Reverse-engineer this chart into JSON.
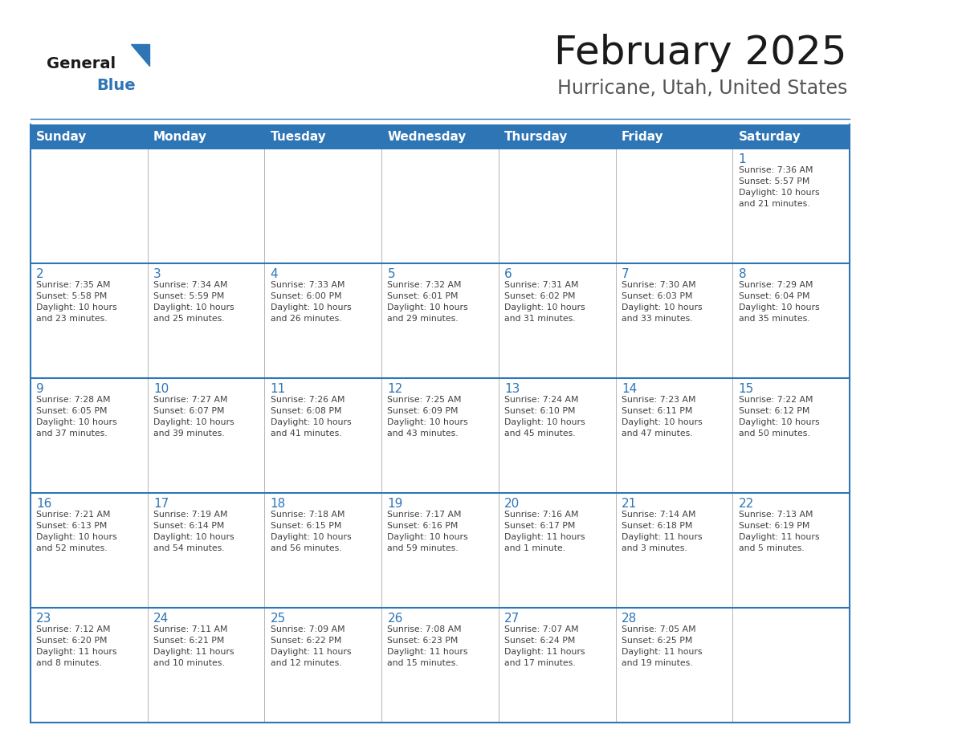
{
  "title": "February 2025",
  "subtitle": "Hurricane, Utah, United States",
  "header_color": "#2e75b6",
  "header_text_color": "#ffffff",
  "cell_bg_color": "#ffffff",
  "grid_line_color": "#2e75b6",
  "inner_line_color": "#aaaaaa",
  "day_number_color": "#2e75b6",
  "cell_text_color": "#404040",
  "title_color": "#1a1a1a",
  "subtitle_color": "#555555",
  "logo_general_color": "#1a1a1a",
  "logo_blue_color": "#2e75b6",
  "days_of_week": [
    "Sunday",
    "Monday",
    "Tuesday",
    "Wednesday",
    "Thursday",
    "Friday",
    "Saturday"
  ],
  "weeks": [
    [
      {
        "day": null,
        "text": ""
      },
      {
        "day": null,
        "text": ""
      },
      {
        "day": null,
        "text": ""
      },
      {
        "day": null,
        "text": ""
      },
      {
        "day": null,
        "text": ""
      },
      {
        "day": null,
        "text": ""
      },
      {
        "day": 1,
        "text": "Sunrise: 7:36 AM\nSunset: 5:57 PM\nDaylight: 10 hours\nand 21 minutes."
      }
    ],
    [
      {
        "day": 2,
        "text": "Sunrise: 7:35 AM\nSunset: 5:58 PM\nDaylight: 10 hours\nand 23 minutes."
      },
      {
        "day": 3,
        "text": "Sunrise: 7:34 AM\nSunset: 5:59 PM\nDaylight: 10 hours\nand 25 minutes."
      },
      {
        "day": 4,
        "text": "Sunrise: 7:33 AM\nSunset: 6:00 PM\nDaylight: 10 hours\nand 26 minutes."
      },
      {
        "day": 5,
        "text": "Sunrise: 7:32 AM\nSunset: 6:01 PM\nDaylight: 10 hours\nand 29 minutes."
      },
      {
        "day": 6,
        "text": "Sunrise: 7:31 AM\nSunset: 6:02 PM\nDaylight: 10 hours\nand 31 minutes."
      },
      {
        "day": 7,
        "text": "Sunrise: 7:30 AM\nSunset: 6:03 PM\nDaylight: 10 hours\nand 33 minutes."
      },
      {
        "day": 8,
        "text": "Sunrise: 7:29 AM\nSunset: 6:04 PM\nDaylight: 10 hours\nand 35 minutes."
      }
    ],
    [
      {
        "day": 9,
        "text": "Sunrise: 7:28 AM\nSunset: 6:05 PM\nDaylight: 10 hours\nand 37 minutes."
      },
      {
        "day": 10,
        "text": "Sunrise: 7:27 AM\nSunset: 6:07 PM\nDaylight: 10 hours\nand 39 minutes."
      },
      {
        "day": 11,
        "text": "Sunrise: 7:26 AM\nSunset: 6:08 PM\nDaylight: 10 hours\nand 41 minutes."
      },
      {
        "day": 12,
        "text": "Sunrise: 7:25 AM\nSunset: 6:09 PM\nDaylight: 10 hours\nand 43 minutes."
      },
      {
        "day": 13,
        "text": "Sunrise: 7:24 AM\nSunset: 6:10 PM\nDaylight: 10 hours\nand 45 minutes."
      },
      {
        "day": 14,
        "text": "Sunrise: 7:23 AM\nSunset: 6:11 PM\nDaylight: 10 hours\nand 47 minutes."
      },
      {
        "day": 15,
        "text": "Sunrise: 7:22 AM\nSunset: 6:12 PM\nDaylight: 10 hours\nand 50 minutes."
      }
    ],
    [
      {
        "day": 16,
        "text": "Sunrise: 7:21 AM\nSunset: 6:13 PM\nDaylight: 10 hours\nand 52 minutes."
      },
      {
        "day": 17,
        "text": "Sunrise: 7:19 AM\nSunset: 6:14 PM\nDaylight: 10 hours\nand 54 minutes."
      },
      {
        "day": 18,
        "text": "Sunrise: 7:18 AM\nSunset: 6:15 PM\nDaylight: 10 hours\nand 56 minutes."
      },
      {
        "day": 19,
        "text": "Sunrise: 7:17 AM\nSunset: 6:16 PM\nDaylight: 10 hours\nand 59 minutes."
      },
      {
        "day": 20,
        "text": "Sunrise: 7:16 AM\nSunset: 6:17 PM\nDaylight: 11 hours\nand 1 minute."
      },
      {
        "day": 21,
        "text": "Sunrise: 7:14 AM\nSunset: 6:18 PM\nDaylight: 11 hours\nand 3 minutes."
      },
      {
        "day": 22,
        "text": "Sunrise: 7:13 AM\nSunset: 6:19 PM\nDaylight: 11 hours\nand 5 minutes."
      }
    ],
    [
      {
        "day": 23,
        "text": "Sunrise: 7:12 AM\nSunset: 6:20 PM\nDaylight: 11 hours\nand 8 minutes."
      },
      {
        "day": 24,
        "text": "Sunrise: 7:11 AM\nSunset: 6:21 PM\nDaylight: 11 hours\nand 10 minutes."
      },
      {
        "day": 25,
        "text": "Sunrise: 7:09 AM\nSunset: 6:22 PM\nDaylight: 11 hours\nand 12 minutes."
      },
      {
        "day": 26,
        "text": "Sunrise: 7:08 AM\nSunset: 6:23 PM\nDaylight: 11 hours\nand 15 minutes."
      },
      {
        "day": 27,
        "text": "Sunrise: 7:07 AM\nSunset: 6:24 PM\nDaylight: 11 hours\nand 17 minutes."
      },
      {
        "day": 28,
        "text": "Sunrise: 7:05 AM\nSunset: 6:25 PM\nDaylight: 11 hours\nand 19 minutes."
      },
      {
        "day": null,
        "text": ""
      }
    ]
  ]
}
